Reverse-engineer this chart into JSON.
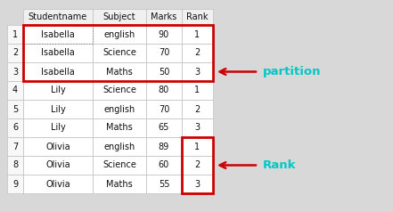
{
  "rows": [
    [
      "1",
      "Isabella",
      "english",
      "90",
      "1"
    ],
    [
      "2",
      "Isabella",
      "Science",
      "70",
      "2"
    ],
    [
      "3",
      "Isabella",
      "Maths",
      "50",
      "3"
    ],
    [
      "4",
      "Lily",
      "Science",
      "80",
      "1"
    ],
    [
      "5",
      "Lily",
      "english",
      "70",
      "2"
    ],
    [
      "6",
      "Lily",
      "Maths",
      "65",
      "3"
    ],
    [
      "7",
      "Olivia",
      "english",
      "89",
      "1"
    ],
    [
      "8",
      "Olivia",
      "Science",
      "60",
      "2"
    ],
    [
      "9",
      "Olivia",
      "Maths",
      "55",
      "3"
    ]
  ],
  "headers": [
    "Studentname",
    "Subject",
    "Marks",
    "Rank"
  ],
  "bg_color": "#d8d8d8",
  "table_bg": "#ffffff",
  "partition_box_color": "#cc0000",
  "rank_box_color": "#cc0000",
  "annotation_partition_color": "#00c8c8",
  "annotation_rank_color": "#00c8c8",
  "arrow_color": "#cc0000",
  "partition_label": "partition",
  "rank_label": "Rank",
  "font_size": 7.0
}
